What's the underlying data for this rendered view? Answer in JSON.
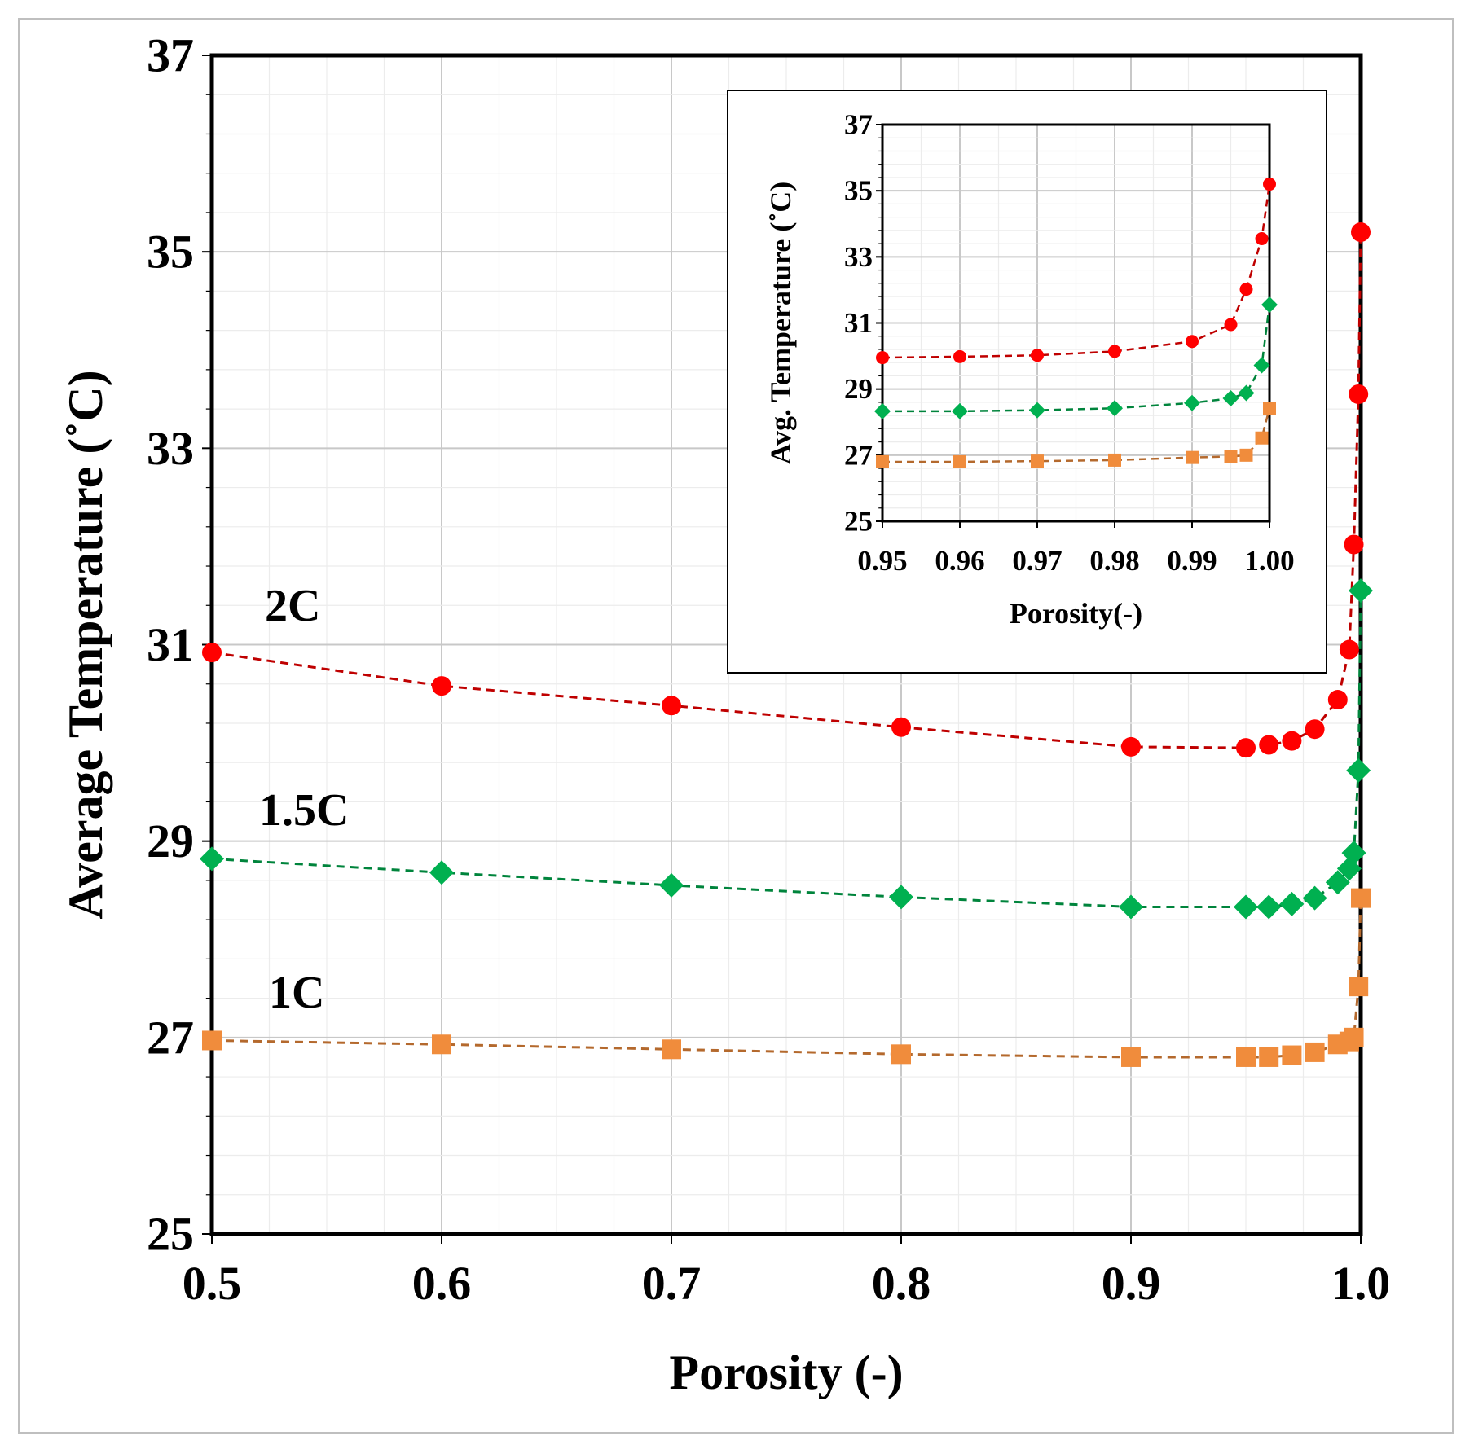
{
  "chart_data": [
    {
      "id": "main",
      "type": "line",
      "title": "",
      "xlabel": "Porosity (-)",
      "ylabel": "Average Temperature (˚C)",
      "xlim": [
        0.5,
        1.0
      ],
      "ylim": [
        25,
        37
      ],
      "xticks": [
        0.5,
        0.6,
        0.7,
        0.8,
        0.9,
        1.0
      ],
      "xtick_labels": [
        "0.5",
        "0.6",
        "0.7",
        "0.8",
        "0.9",
        "1.0"
      ],
      "yticks": [
        25,
        27,
        29,
        31,
        33,
        35,
        37
      ],
      "ytick_labels": [
        "25",
        "27",
        "29",
        "31",
        "33",
        "35",
        "37"
      ],
      "grid": true,
      "series": [
        {
          "name": "2C",
          "label": "2C",
          "color": "#ff0000",
          "marker": "circle",
          "x": [
            0.5,
            0.6,
            0.7,
            0.8,
            0.9,
            0.95,
            0.96,
            0.97,
            0.98,
            0.99,
            0.995,
            0.997,
            0.999,
            1.0
          ],
          "y": [
            30.92,
            30.58,
            30.38,
            30.16,
            29.96,
            29.95,
            29.98,
            30.02,
            30.14,
            30.44,
            30.95,
            32.02,
            33.55,
            35.2
          ]
        },
        {
          "name": "1.5C",
          "label": "1.5C",
          "color": "#00b050",
          "marker": "diamond",
          "x": [
            0.5,
            0.6,
            0.7,
            0.8,
            0.9,
            0.95,
            0.96,
            0.97,
            0.98,
            0.99,
            0.995,
            0.997,
            0.999,
            1.0
          ],
          "y": [
            28.82,
            28.68,
            28.55,
            28.43,
            28.33,
            28.33,
            28.33,
            28.36,
            28.42,
            28.58,
            28.72,
            28.88,
            29.72,
            31.55
          ]
        },
        {
          "name": "1C",
          "label": "1C",
          "color": "#f08c3c",
          "marker": "square",
          "x": [
            0.5,
            0.6,
            0.7,
            0.8,
            0.9,
            0.95,
            0.96,
            0.97,
            0.98,
            0.99,
            0.995,
            0.997,
            0.999,
            1.0
          ],
          "y": [
            26.97,
            26.93,
            26.88,
            26.83,
            26.8,
            26.8,
            26.8,
            26.82,
            26.85,
            26.93,
            26.96,
            27.0,
            27.52,
            28.42
          ]
        }
      ]
    },
    {
      "id": "inset",
      "type": "line",
      "title": "",
      "xlabel": "Porosity(-)",
      "ylabel": "Avg. Temperature (˚C)",
      "xlim": [
        0.95,
        1.0
      ],
      "ylim": [
        25,
        37
      ],
      "xticks": [
        0.95,
        0.96,
        0.97,
        0.98,
        0.99,
        1.0
      ],
      "xtick_labels": [
        "0.95",
        "0.96",
        "0.97",
        "0.98",
        "0.99",
        "1.00"
      ],
      "yticks": [
        25,
        27,
        29,
        31,
        33,
        35,
        37
      ],
      "ytick_labels": [
        "25",
        "27",
        "29",
        "31",
        "33",
        "35",
        "37"
      ],
      "grid": true,
      "series": [
        {
          "name": "2C",
          "color": "#ff0000",
          "marker": "circle",
          "x": [
            0.95,
            0.96,
            0.97,
            0.98,
            0.99,
            0.995,
            0.997,
            0.999,
            1.0
          ],
          "y": [
            29.95,
            29.98,
            30.02,
            30.14,
            30.44,
            30.95,
            32.02,
            33.55,
            35.2
          ]
        },
        {
          "name": "1.5C",
          "color": "#00b050",
          "marker": "diamond",
          "x": [
            0.95,
            0.96,
            0.97,
            0.98,
            0.99,
            0.995,
            0.997,
            0.999,
            1.0
          ],
          "y": [
            28.33,
            28.33,
            28.36,
            28.42,
            28.58,
            28.72,
            28.88,
            29.72,
            31.55
          ]
        },
        {
          "name": "1C",
          "color": "#f08c3c",
          "marker": "square",
          "x": [
            0.95,
            0.96,
            0.97,
            0.98,
            0.99,
            0.995,
            0.997,
            0.999,
            1.0
          ],
          "y": [
            26.8,
            26.8,
            26.82,
            26.85,
            26.93,
            26.96,
            27.0,
            27.52,
            28.42
          ]
        }
      ]
    }
  ]
}
